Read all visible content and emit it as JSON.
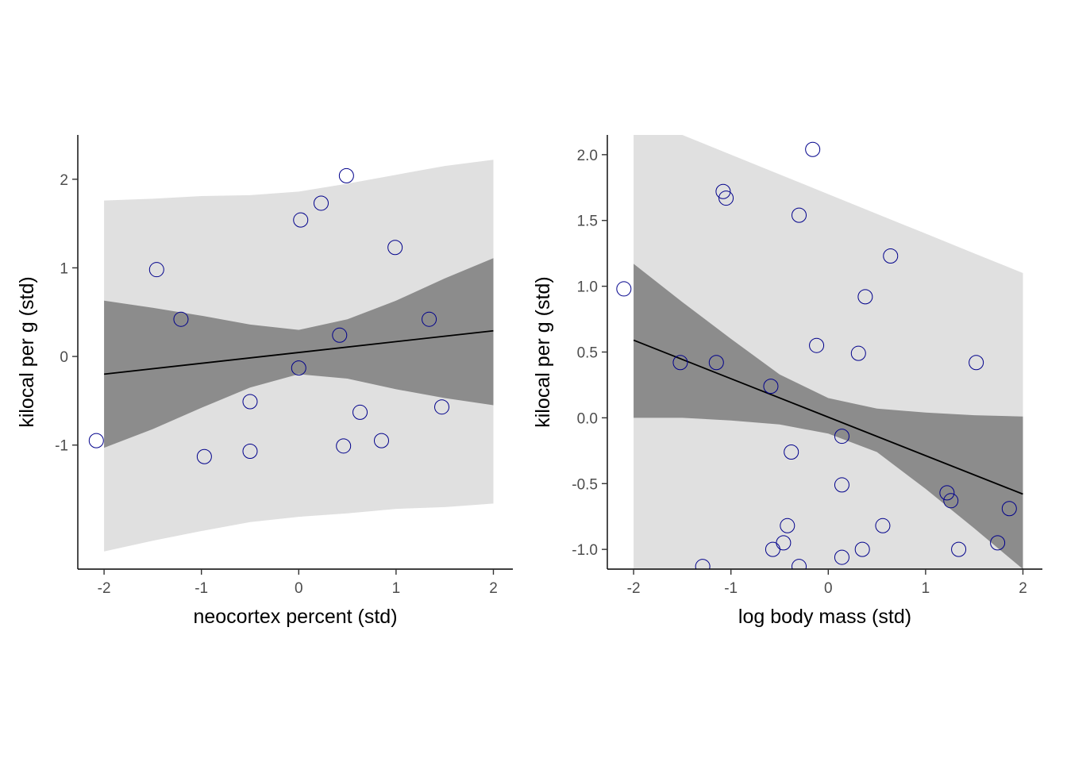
{
  "chart_data": [
    {
      "type": "scatter",
      "title": "",
      "xlabel": "neocortex percent (std)",
      "ylabel": "kilocal per g (std)",
      "xlim": [
        -2.27,
        2.2
      ],
      "ylim": [
        -2.4,
        2.5
      ],
      "xticks": [
        -2,
        -1,
        0,
        1,
        2
      ],
      "xtick_labels": [
        "-2",
        "-1",
        "0",
        "1",
        "2"
      ],
      "yticks": [
        -1,
        0,
        1,
        2
      ],
      "ytick_labels": [
        "-1",
        "0",
        "1",
        "2"
      ],
      "grid": false,
      "point_color": "#00008b",
      "line_color": "#000000",
      "inner_band_color": "#8c8c8c",
      "outer_band_color": "#e0e0e0",
      "points": [
        {
          "x": -2.08,
          "y": -0.95
        },
        {
          "x": -1.46,
          "y": 0.98
        },
        {
          "x": -1.21,
          "y": 0.42
        },
        {
          "x": -0.97,
          "y": -1.13
        },
        {
          "x": -0.5,
          "y": -0.51
        },
        {
          "x": -0.5,
          "y": -1.07
        },
        {
          "x": 0.0,
          "y": -0.13
        },
        {
          "x": 0.02,
          "y": 1.54
        },
        {
          "x": 0.23,
          "y": 1.73
        },
        {
          "x": 0.42,
          "y": 0.24
        },
        {
          "x": 0.46,
          "y": -1.01
        },
        {
          "x": 0.49,
          "y": 2.04
        },
        {
          "x": 0.63,
          "y": -0.63
        },
        {
          "x": 0.85,
          "y": -0.95
        },
        {
          "x": 0.99,
          "y": 1.23
        },
        {
          "x": 1.34,
          "y": 0.42
        },
        {
          "x": 1.47,
          "y": -0.57
        }
      ],
      "mean_line": [
        {
          "x": -2,
          "y": -0.2
        },
        {
          "x": 2,
          "y": 0.29
        }
      ],
      "inner_band": [
        {
          "x": -2.0,
          "lo": -1.03,
          "hi": 0.63
        },
        {
          "x": -1.5,
          "lo": -0.82,
          "hi": 0.55
        },
        {
          "x": -1.0,
          "lo": -0.58,
          "hi": 0.46
        },
        {
          "x": -0.5,
          "lo": -0.35,
          "hi": 0.36
        },
        {
          "x": 0.0,
          "lo": -0.2,
          "hi": 0.3
        },
        {
          "x": 0.5,
          "lo": -0.25,
          "hi": 0.42
        },
        {
          "x": 1.0,
          "lo": -0.37,
          "hi": 0.63
        },
        {
          "x": 1.5,
          "lo": -0.47,
          "hi": 0.88
        },
        {
          "x": 2.0,
          "lo": -0.55,
          "hi": 1.11
        }
      ],
      "outer_band": [
        {
          "x": -2.0,
          "lo": -2.2,
          "hi": 1.76
        },
        {
          "x": -1.5,
          "lo": -2.08,
          "hi": 1.78
        },
        {
          "x": -1.0,
          "lo": -1.97,
          "hi": 1.81
        },
        {
          "x": -0.5,
          "lo": -1.87,
          "hi": 1.82
        },
        {
          "x": 0.0,
          "lo": -1.81,
          "hi": 1.86
        },
        {
          "x": 0.5,
          "lo": -1.77,
          "hi": 1.95
        },
        {
          "x": 1.0,
          "lo": -1.72,
          "hi": 2.05
        },
        {
          "x": 1.5,
          "lo": -1.7,
          "hi": 2.15
        },
        {
          "x": 2.0,
          "lo": -1.66,
          "hi": 2.22
        }
      ]
    },
    {
      "type": "scatter",
      "title": "",
      "xlabel": "log body mass (std)",
      "ylabel": "kilocal per g (std)",
      "xlim": [
        -2.27,
        2.2
      ],
      "ylim": [
        -1.15,
        2.15
      ],
      "xticks": [
        -2,
        -1,
        0,
        1,
        2
      ],
      "xtick_labels": [
        "-2",
        "-1",
        "0",
        "1",
        "2"
      ],
      "yticks": [
        -1.0,
        -0.5,
        0.0,
        0.5,
        1.0,
        1.5,
        2.0
      ],
      "ytick_labels": [
        "-1.0",
        "-0.5",
        "0.0",
        "0.5",
        "1.0",
        "1.5",
        "2.0"
      ],
      "grid": false,
      "point_color": "#00008b",
      "line_color": "#000000",
      "inner_band_color": "#8c8c8c",
      "outer_band_color": "#e0e0e0",
      "points": [
        {
          "x": -2.1,
          "y": 0.98
        },
        {
          "x": -1.52,
          "y": 0.42
        },
        {
          "x": -1.15,
          "y": 0.42
        },
        {
          "x": -1.08,
          "y": 1.72
        },
        {
          "x": -1.05,
          "y": 1.67
        },
        {
          "x": -0.59,
          "y": 0.24
        },
        {
          "x": -0.57,
          "y": -1.0
        },
        {
          "x": -0.46,
          "y": -0.95
        },
        {
          "x": -0.42,
          "y": -0.82
        },
        {
          "x": -0.38,
          "y": -0.26
        },
        {
          "x": -0.3,
          "y": 1.54
        },
        {
          "x": -0.3,
          "y": -1.13
        },
        {
          "x": -0.16,
          "y": 2.04
        },
        {
          "x": -0.12,
          "y": 0.55
        },
        {
          "x": 0.14,
          "y": -0.14
        },
        {
          "x": 0.14,
          "y": -0.51
        },
        {
          "x": 0.14,
          "y": -1.06
        },
        {
          "x": 0.31,
          "y": 0.49
        },
        {
          "x": 0.35,
          "y": -1.0
        },
        {
          "x": 0.38,
          "y": 0.92
        },
        {
          "x": 0.56,
          "y": -0.82
        },
        {
          "x": 0.64,
          "y": 1.23
        },
        {
          "x": 1.22,
          "y": -0.57
        },
        {
          "x": 1.26,
          "y": -0.63
        },
        {
          "x": 1.34,
          "y": -1.0
        },
        {
          "x": 1.52,
          "y": 0.42
        },
        {
          "x": 1.74,
          "y": -0.95
        },
        {
          "x": 1.86,
          "y": -0.69
        },
        {
          "x": -1.29,
          "y": -1.13
        }
      ],
      "mean_line": [
        {
          "x": -2,
          "y": 0.59
        },
        {
          "x": 2,
          "y": -0.58
        }
      ],
      "inner_band": [
        {
          "x": -2.0,
          "lo": 0.0,
          "hi": 1.17
        },
        {
          "x": -1.5,
          "lo": 0.0,
          "hi": 0.88
        },
        {
          "x": -1.0,
          "lo": -0.02,
          "hi": 0.6
        },
        {
          "x": -0.5,
          "lo": -0.05,
          "hi": 0.33
        },
        {
          "x": 0.0,
          "lo": -0.12,
          "hi": 0.15
        },
        {
          "x": 0.5,
          "lo": -0.26,
          "hi": 0.07
        },
        {
          "x": 1.0,
          "lo": -0.54,
          "hi": 0.04
        },
        {
          "x": 1.5,
          "lo": -0.84,
          "hi": 0.02
        },
        {
          "x": 2.0,
          "lo": -1.15,
          "hi": 0.01
        }
      ],
      "outer_band": [
        {
          "x": -2.0,
          "lo": -1.15,
          "hi": 2.15
        },
        {
          "x": -1.5,
          "lo": -1.15,
          "hi": 2.15
        },
        {
          "x": -1.0,
          "lo": -1.15,
          "hi": 2.0
        },
        {
          "x": -0.5,
          "lo": -1.15,
          "hi": 1.85
        },
        {
          "x": 0.0,
          "lo": -1.15,
          "hi": 1.7
        },
        {
          "x": 0.5,
          "lo": -1.15,
          "hi": 1.55
        },
        {
          "x": 1.0,
          "lo": -1.15,
          "hi": 1.4
        },
        {
          "x": 1.5,
          "lo": -1.15,
          "hi": 1.25
        },
        {
          "x": 2.0,
          "lo": -1.15,
          "hi": 1.1
        }
      ]
    }
  ]
}
